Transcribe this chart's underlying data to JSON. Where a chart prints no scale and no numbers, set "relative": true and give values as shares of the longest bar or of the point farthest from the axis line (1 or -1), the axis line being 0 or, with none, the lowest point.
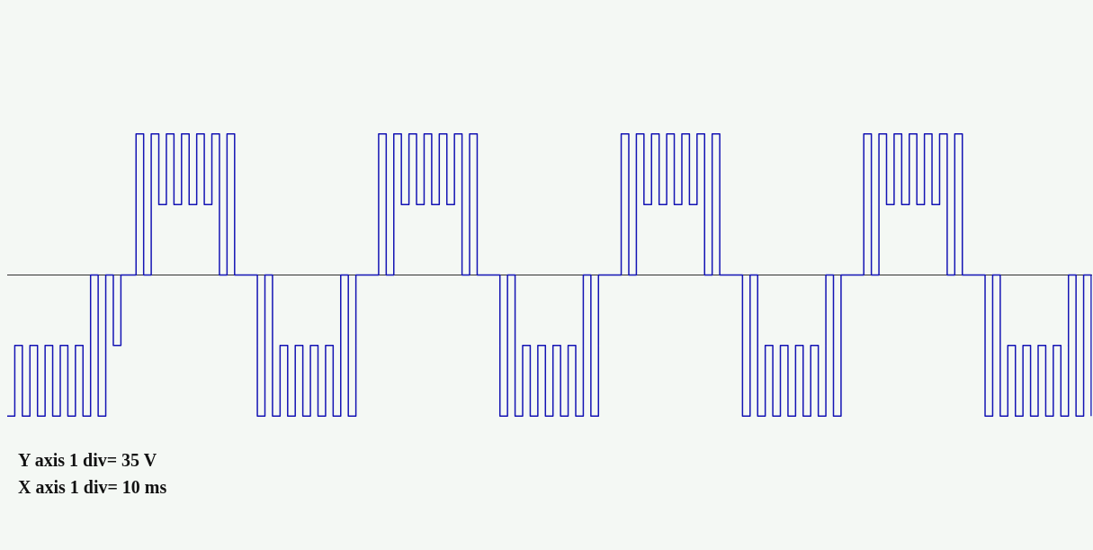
{
  "chart_data": {
    "type": "step",
    "relative": true,
    "categories": [
      null,
      null,
      null,
      null,
      null,
      null,
      null,
      null,
      null,
      null,
      null,
      null,
      null,
      null,
      null,
      null,
      null,
      null,
      null,
      null,
      null,
      null,
      null,
      null,
      null,
      null,
      null,
      null,
      null,
      null,
      null,
      null,
      null,
      null,
      null,
      null,
      null,
      null,
      null,
      null,
      null,
      null,
      null,
      null,
      null,
      null,
      null,
      null,
      null,
      null,
      null,
      null,
      null,
      null,
      null,
      null,
      null,
      null,
      null,
      null,
      null,
      null,
      null,
      null,
      null,
      null,
      null,
      null,
      null,
      null,
      null,
      null,
      null,
      null,
      null,
      null,
      null,
      null,
      null,
      null,
      null,
      null,
      null,
      null,
      null,
      null,
      null,
      null,
      null,
      null,
      null,
      null,
      null,
      null,
      null,
      null,
      null,
      null,
      null,
      null,
      null,
      null,
      null,
      null,
      null,
      null,
      null,
      null,
      null,
      null,
      null,
      null,
      null,
      null,
      null,
      null,
      null,
      null,
      null,
      null,
      null,
      null,
      null,
      null,
      null,
      null,
      null,
      null,
      null,
      null,
      null,
      null,
      null,
      null,
      null,
      null,
      null,
      null,
      null,
      null,
      null,
      null,
      null,
      null
    ],
    "series": [
      {
        "color": "#1414b4",
        "values": [
          -1,
          -0.5,
          -1,
          -0.5,
          -1,
          -0.5,
          -1,
          -0.5,
          -1,
          -0.5,
          -1,
          0,
          -1,
          0,
          -0.5,
          0,
          0,
          1,
          0,
          1,
          0.5,
          1,
          0.5,
          1,
          0.5,
          1,
          0.5,
          1,
          0,
          1,
          0,
          0,
          0,
          -1,
          0,
          -1,
          -0.5,
          -1,
          -0.5,
          -1,
          -0.5,
          -1,
          -0.5,
          -1,
          0,
          -1,
          0,
          0,
          0,
          1,
          0,
          1,
          0.5,
          1,
          0.5,
          1,
          0.5,
          1,
          0.5,
          1,
          0,
          1,
          0,
          0,
          0,
          -1,
          0,
          -1,
          -0.5,
          -1,
          -0.5,
          -1,
          -0.5,
          -1,
          -0.5,
          -1,
          0,
          -1,
          0,
          0,
          0,
          1,
          0,
          1,
          0.5,
          1,
          0.5,
          1,
          0.5,
          1,
          0.5,
          1,
          0,
          1,
          0,
          0,
          0,
          -1,
          0,
          -1,
          -0.5,
          -1,
          -0.5,
          -1,
          -0.5,
          -1,
          -0.5,
          -1,
          0,
          -1,
          0,
          0,
          0,
          1,
          0,
          1,
          0.5,
          1,
          0.5,
          1,
          0.5,
          1,
          0.5,
          1,
          0,
          1,
          0,
          0,
          0,
          -1,
          0,
          -1,
          -0.5,
          -1,
          -0.5,
          -1,
          -0.5,
          -1,
          -0.5,
          -1,
          0,
          -1,
          0,
          -1
        ]
      }
    ],
    "annotations": [
      "Y axis 1 div= 35 V",
      "X axis 1 div= 10 ms"
    ]
  }
}
